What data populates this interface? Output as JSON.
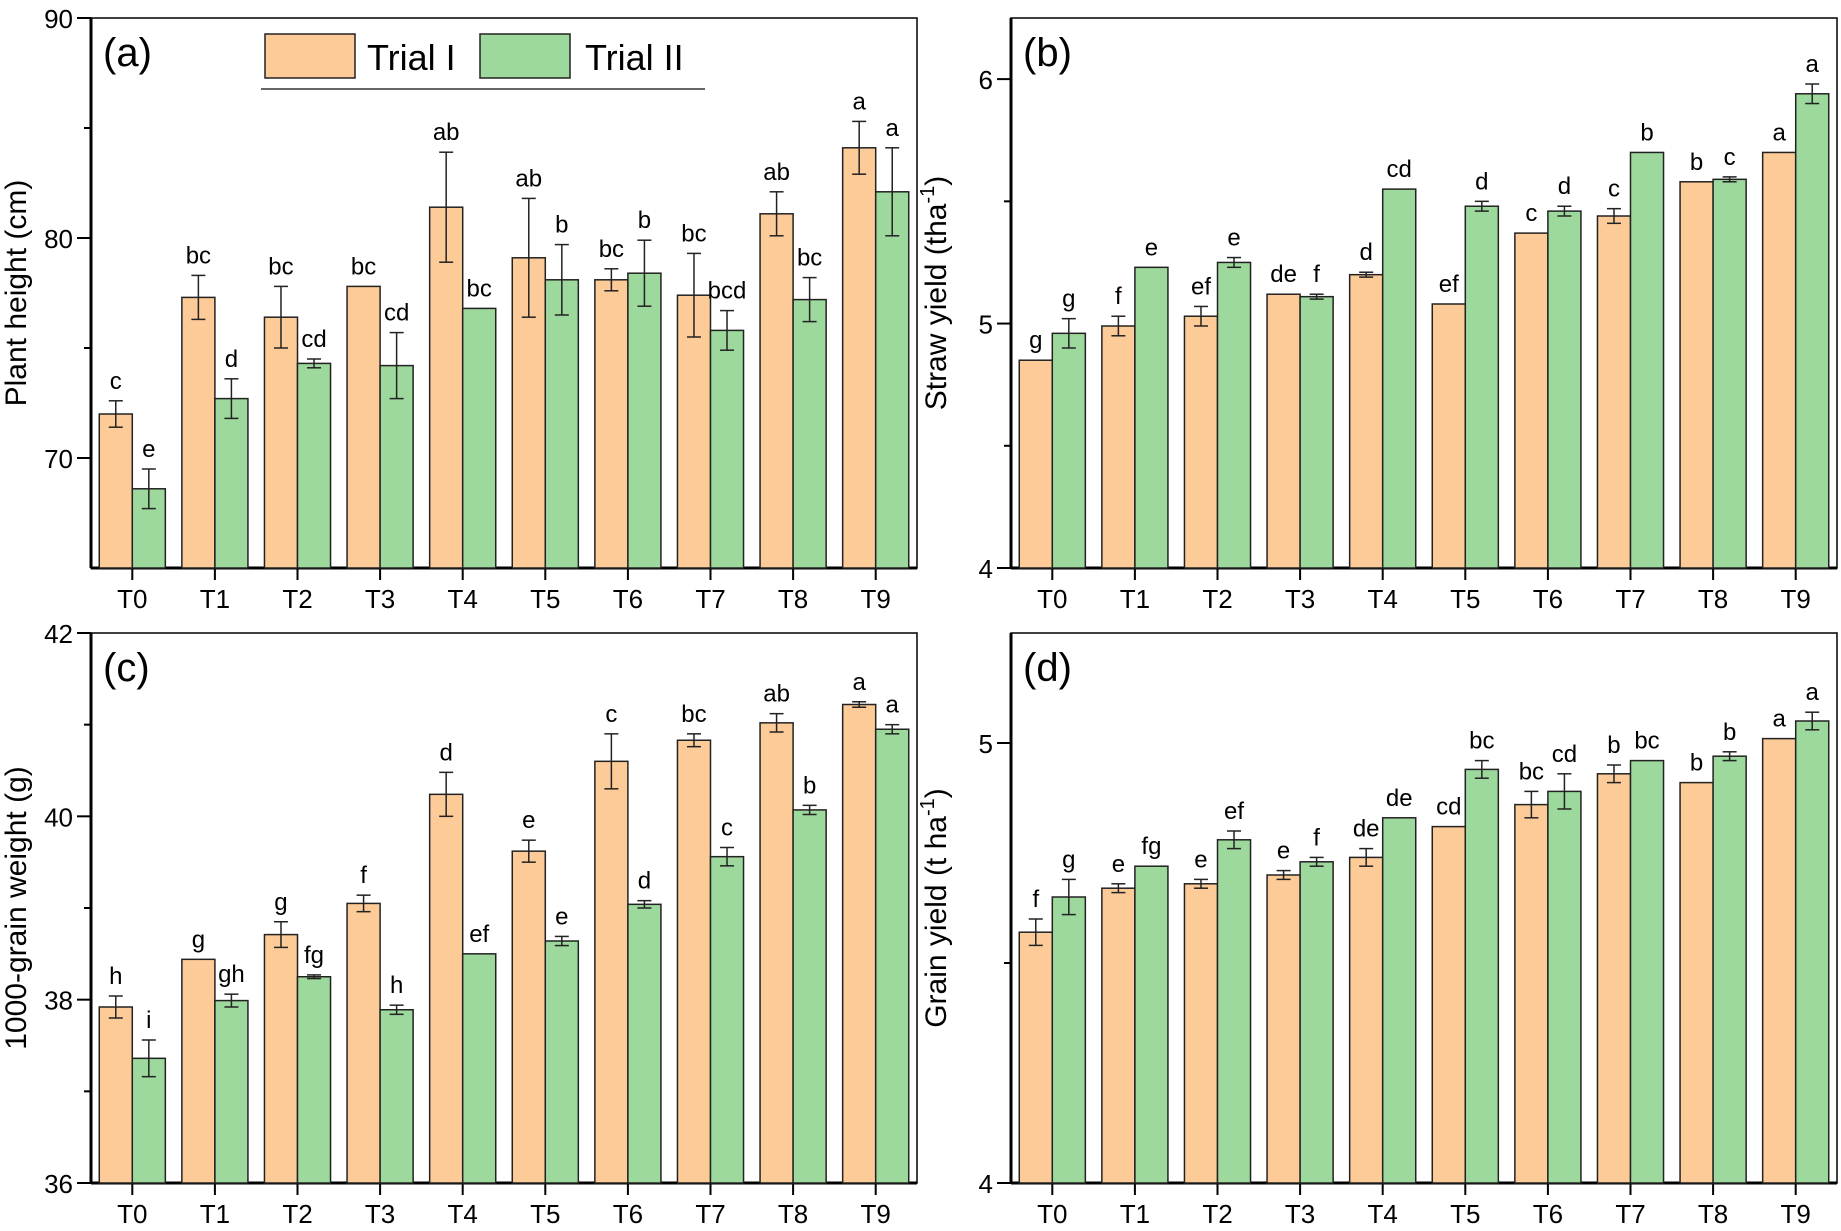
{
  "colors": {
    "trial1": "#FCCB98",
    "trial2": "#9DD89D",
    "edge": "#222222"
  },
  "legend": {
    "items": [
      "Trial I",
      "Trial II"
    ],
    "placement": "top-center of panel (a)"
  },
  "chart_data": [
    {
      "type": "bar",
      "panel": "(a)",
      "ylabel": "Plant height (cm)",
      "xlabel": "",
      "ylim": [
        65,
        90
      ],
      "yticks": [
        70,
        80,
        90
      ],
      "categories": [
        "T0",
        "T1",
        "T2",
        "T3",
        "T4",
        "T5",
        "T6",
        "T7",
        "T8",
        "T9"
      ],
      "series": [
        {
          "name": "Trial I",
          "values": [
            72.0,
            77.3,
            76.4,
            77.8,
            81.4,
            79.1,
            78.1,
            77.4,
            81.1,
            84.1
          ],
          "errors": [
            0.6,
            1.0,
            1.4,
            0.0,
            2.5,
            2.7,
            0.5,
            1.9,
            1.0,
            1.2
          ],
          "letters": [
            "c",
            "bc",
            "bc",
            "bc",
            "ab",
            "ab",
            "bc",
            "bc",
            "ab",
            "a"
          ]
        },
        {
          "name": "Trial II",
          "values": [
            68.6,
            72.7,
            74.3,
            74.2,
            76.8,
            78.1,
            78.4,
            75.8,
            77.2,
            82.1
          ],
          "errors": [
            0.9,
            0.9,
            0.2,
            1.5,
            0.0,
            1.6,
            1.5,
            0.9,
            1.0,
            2.0
          ],
          "letters": [
            "e",
            "d",
            "cd",
            "cd",
            "bc",
            "b",
            "b",
            "bcd",
            "bc",
            "a"
          ]
        }
      ]
    },
    {
      "type": "bar",
      "panel": "(b)",
      "ylabel": "Straw yield (tha",
      "ylabel_sup": "-1",
      "ylabel_end": ")",
      "xlabel": "",
      "ylim": [
        4,
        6.25
      ],
      "yticks": [
        4,
        5,
        6
      ],
      "categories": [
        "T0",
        "T1",
        "T2",
        "T3",
        "T4",
        "T5",
        "T6",
        "T7",
        "T8",
        "T9"
      ],
      "series": [
        {
          "name": "Trial I",
          "values": [
            4.85,
            4.99,
            5.03,
            5.12,
            5.2,
            5.08,
            5.37,
            5.44,
            5.58,
            5.7
          ],
          "errors": [
            0.0,
            0.04,
            0.04,
            0.0,
            0.01,
            0.0,
            0.0,
            0.03,
            0.0,
            0.0
          ],
          "letters": [
            "g",
            "f",
            "ef",
            "de",
            "d",
            "ef",
            "c",
            "c",
            "b",
            "a"
          ]
        },
        {
          "name": "Trial II",
          "values": [
            4.96,
            5.23,
            5.25,
            5.11,
            5.55,
            5.48,
            5.46,
            5.7,
            5.59,
            5.94
          ],
          "errors": [
            0.06,
            0.0,
            0.02,
            0.01,
            0.0,
            0.02,
            0.02,
            0.0,
            0.01,
            0.04
          ],
          "letters": [
            "g",
            "e",
            "e",
            "f",
            "cd",
            "d",
            "d",
            "b",
            "c",
            "a"
          ]
        }
      ]
    },
    {
      "type": "bar",
      "panel": "(c)",
      "ylabel": "1000-grain weight (g)",
      "xlabel": "",
      "ylim": [
        36,
        42
      ],
      "yticks": [
        36,
        38,
        40,
        42
      ],
      "categories": [
        "T0",
        "T1",
        "T2",
        "T3",
        "T4",
        "T5",
        "T6",
        "T7",
        "T8",
        "T9"
      ],
      "series": [
        {
          "name": "Trial I",
          "values": [
            37.92,
            38.44,
            38.71,
            39.05,
            40.24,
            39.62,
            40.6,
            40.83,
            41.02,
            41.22
          ],
          "errors": [
            0.12,
            0.0,
            0.14,
            0.09,
            0.24,
            0.12,
            0.3,
            0.07,
            0.1,
            0.03
          ],
          "letters": [
            "h",
            "g",
            "g",
            "f",
            "d",
            "e",
            "c",
            "bc",
            "ab",
            "a"
          ]
        },
        {
          "name": "Trial II",
          "values": [
            37.36,
            37.99,
            38.25,
            37.89,
            38.5,
            38.64,
            39.04,
            39.56,
            40.07,
            40.95
          ],
          "errors": [
            0.2,
            0.07,
            0.02,
            0.05,
            0.0,
            0.05,
            0.04,
            0.1,
            0.05,
            0.05
          ],
          "letters": [
            "i",
            "gh",
            "fg",
            "h",
            "ef",
            "e",
            "d",
            "c",
            "b",
            "a"
          ]
        }
      ]
    },
    {
      "type": "bar",
      "panel": "(d)",
      "ylabel": "Grain yield (t ha",
      "ylabel_sup": "-1",
      "ylabel_end": ")",
      "xlabel": "",
      "ylim": [
        4,
        5.25
      ],
      "yticks": [
        4,
        5
      ],
      "categories": [
        "T0",
        "T1",
        "T2",
        "T3",
        "T4",
        "T5",
        "T6",
        "T7",
        "T8",
        "T9"
      ],
      "series": [
        {
          "name": "Trial I",
          "values": [
            4.57,
            4.67,
            4.68,
            4.7,
            4.74,
            4.81,
            4.86,
            4.93,
            4.91,
            5.01
          ],
          "errors": [
            0.03,
            0.01,
            0.01,
            0.01,
            0.02,
            0.0,
            0.03,
            0.02,
            0.0,
            0.0
          ],
          "letters": [
            "f",
            "e",
            "e",
            "e",
            "de",
            "cd",
            "bc",
            "b",
            "b",
            "a"
          ]
        },
        {
          "name": "Trial II",
          "values": [
            4.65,
            4.72,
            4.78,
            4.73,
            4.83,
            4.94,
            4.89,
            4.96,
            4.97,
            5.05
          ],
          "errors": [
            0.04,
            0.0,
            0.02,
            0.01,
            0.0,
            0.02,
            0.04,
            0.0,
            0.01,
            0.02
          ],
          "letters": [
            "g",
            "fg",
            "ef",
            "f",
            "de",
            "bc",
            "cd",
            "bc",
            "b",
            "a"
          ]
        }
      ]
    }
  ]
}
